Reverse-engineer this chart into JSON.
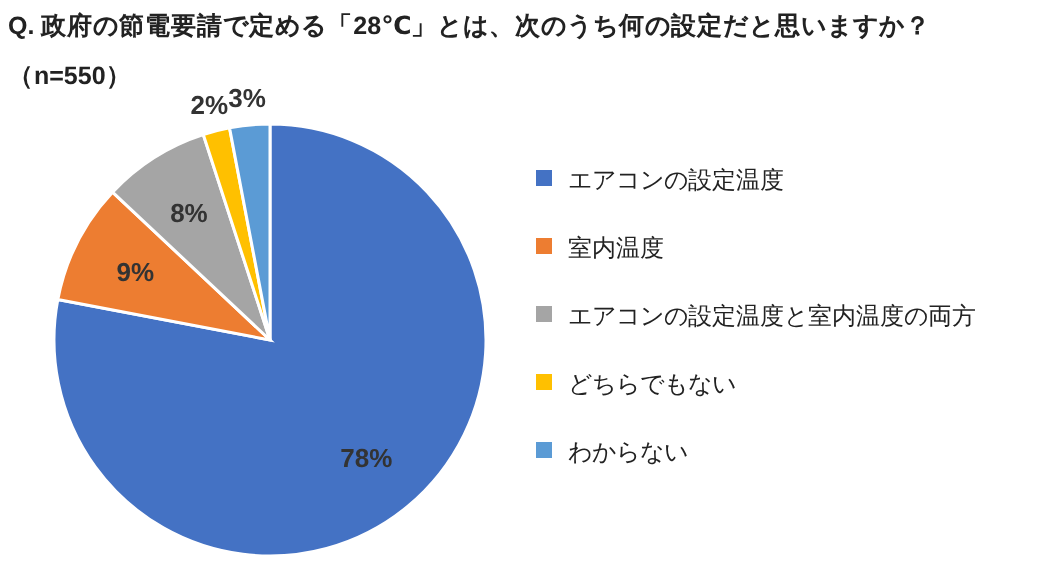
{
  "chart_data": {
    "type": "pie",
    "title": "Q. 政府の節電要請で定める「28℃」とは、次のうち何の設定だと思いますか？",
    "subtitle": "（n=550）",
    "categories": [
      "エアコンの設定温度",
      "室内温度",
      "エアコンの設定温度と室内温度の両方",
      "どちらでもない",
      "わからない"
    ],
    "values": [
      78,
      9,
      8,
      2,
      3
    ],
    "colors": [
      "#4472c4",
      "#ed7d31",
      "#a5a5a5",
      "#ffc000",
      "#5b9bd5"
    ],
    "value_labels": [
      "78%",
      "9%",
      "8%",
      "2%",
      "3%"
    ],
    "legend": "right"
  }
}
